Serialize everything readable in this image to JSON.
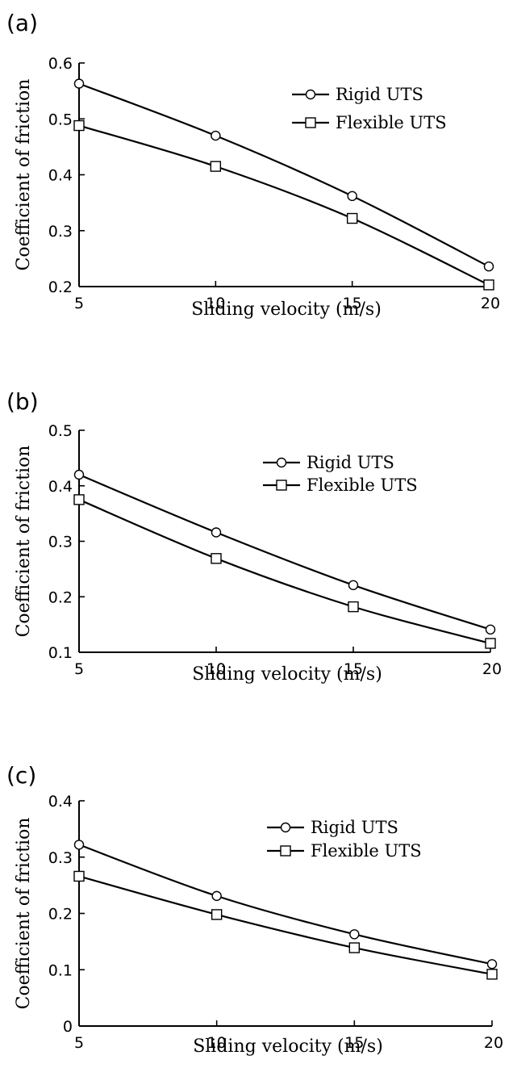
{
  "chart_data": [
    {
      "type": "line",
      "panel_label": "(a)",
      "xlabel": "Sliding velocity (m/s)",
      "ylabel": "Coefficient of friction",
      "xlim": [
        5,
        20
      ],
      "ylim": [
        0.2,
        0.6
      ],
      "xticks": [
        "5",
        "10",
        "15",
        "20"
      ],
      "yticks": [
        "0.2",
        "0.3",
        "0.4",
        "0.5",
        "0.6"
      ],
      "grid": false,
      "legend_position": "top-right",
      "series": [
        {
          "name": "Rigid UTS",
          "marker": "circle",
          "x": [
            5,
            10,
            15,
            20
          ],
          "y": [
            0.563,
            0.47,
            0.362,
            0.236
          ]
        },
        {
          "name": "Flexible UTS",
          "marker": "square",
          "x": [
            5,
            10,
            15,
            20
          ],
          "y": [
            0.488,
            0.415,
            0.322,
            0.203
          ]
        }
      ]
    },
    {
      "type": "line",
      "panel_label": "(b)",
      "xlabel": "Sliding velocity (m/s)",
      "ylabel": "Coefficient of friction",
      "xlim": [
        5,
        20
      ],
      "ylim": [
        0.1,
        0.5
      ],
      "xticks": [
        "5",
        "10",
        "15",
        "20"
      ],
      "yticks": [
        "0.1",
        "0.2",
        "0.3",
        "0.4",
        "0.5"
      ],
      "grid": false,
      "legend_position": "top-right",
      "series": [
        {
          "name": "Rigid UTS",
          "marker": "circle",
          "x": [
            5,
            10,
            15,
            20
          ],
          "y": [
            0.42,
            0.316,
            0.221,
            0.141
          ]
        },
        {
          "name": "Flexible UTS",
          "marker": "square",
          "x": [
            5,
            10,
            15,
            20
          ],
          "y": [
            0.375,
            0.269,
            0.182,
            0.116
          ]
        }
      ]
    },
    {
      "type": "line",
      "panel_label": "(c)",
      "xlabel": "Sliding velocity (m/s)",
      "ylabel": "Coefficient of friction",
      "xlim": [
        5,
        20
      ],
      "ylim": [
        0,
        0.4
      ],
      "xticks": [
        "5",
        "10",
        "15",
        "20"
      ],
      "yticks": [
        "0",
        "0.1",
        "0.2",
        "0.3",
        "0.4"
      ],
      "grid": false,
      "legend_position": "top-right",
      "series": [
        {
          "name": "Rigid UTS",
          "marker": "circle",
          "x": [
            5,
            10,
            15,
            20
          ],
          "y": [
            0.322,
            0.231,
            0.163,
            0.11
          ]
        },
        {
          "name": "Flexible UTS",
          "marker": "square",
          "x": [
            5,
            10,
            15,
            20
          ],
          "y": [
            0.266,
            0.198,
            0.139,
            0.092
          ]
        }
      ]
    }
  ]
}
